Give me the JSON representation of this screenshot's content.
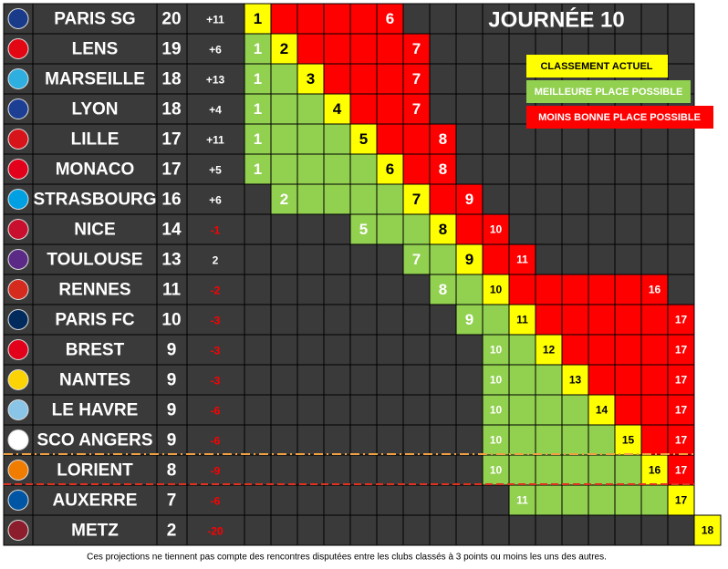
{
  "title": "JOURNÉE 10",
  "legend": {
    "current": "CLASSEMENT ACTUEL",
    "best": "MEILLEURE PLACE POSSIBLE",
    "worst": "MOINS BONNE PLACE POSSIBLE"
  },
  "footnote": "Ces projections ne tiennent pas compte des rencontres disputées entre les clubs classés à 3 points ou moins les uns des autres.",
  "rows": [
    {
      "name": "PARIS SG",
      "points": 20,
      "diff": "+11",
      "rank": 1,
      "best": 1,
      "worst": 6
    },
    {
      "name": "LENS",
      "points": 19,
      "diff": "+6",
      "rank": 2,
      "best": 1,
      "worst": 7
    },
    {
      "name": "MARSEILLE",
      "points": 18,
      "diff": "+13",
      "rank": 3,
      "best": 1,
      "worst": 7
    },
    {
      "name": "LYON",
      "points": 18,
      "diff": "+4",
      "rank": 4,
      "best": 1,
      "worst": 7
    },
    {
      "name": "LILLE",
      "points": 17,
      "diff": "+11",
      "rank": 5,
      "best": 1,
      "worst": 8
    },
    {
      "name": "MONACO",
      "points": 17,
      "diff": "+5",
      "rank": 6,
      "best": 1,
      "worst": 8
    },
    {
      "name": "STRASBOURG",
      "points": 16,
      "diff": "+6",
      "rank": 7,
      "best": 2,
      "worst": 9
    },
    {
      "name": "NICE",
      "points": 14,
      "diff": "-1",
      "rank": 8,
      "best": 5,
      "worst": 10
    },
    {
      "name": "TOULOUSE",
      "points": 13,
      "diff": "2",
      "rank": 9,
      "best": 7,
      "worst": 11
    },
    {
      "name": "RENNES",
      "points": 11,
      "diff": "-2",
      "rank": 10,
      "best": 8,
      "worst": 16
    },
    {
      "name": "PARIS FC",
      "points": 10,
      "diff": "-3",
      "rank": 11,
      "best": 9,
      "worst": 17
    },
    {
      "name": "BREST",
      "points": 9,
      "diff": "-3",
      "rank": 12,
      "best": 10,
      "worst": 17
    },
    {
      "name": "NANTES",
      "points": 9,
      "diff": "-3",
      "rank": 13,
      "best": 10,
      "worst": 17
    },
    {
      "name": "LE HAVRE",
      "points": 9,
      "diff": "-6",
      "rank": 14,
      "best": 10,
      "worst": 17
    },
    {
      "name": "SCO ANGERS",
      "points": 9,
      "diff": "-6",
      "rank": 15,
      "best": 10,
      "worst": 17
    },
    {
      "name": "LORIENT",
      "points": 8,
      "diff": "-9",
      "rank": 16,
      "best": 10,
      "worst": 17
    },
    {
      "name": "AUXERRE",
      "points": 7,
      "diff": "-6",
      "rank": 17,
      "best": 11,
      "worst": 17
    },
    {
      "name": "METZ",
      "points": 2,
      "diff": "-20",
      "rank": 18,
      "best": 18,
      "worst": 18
    }
  ]
}
